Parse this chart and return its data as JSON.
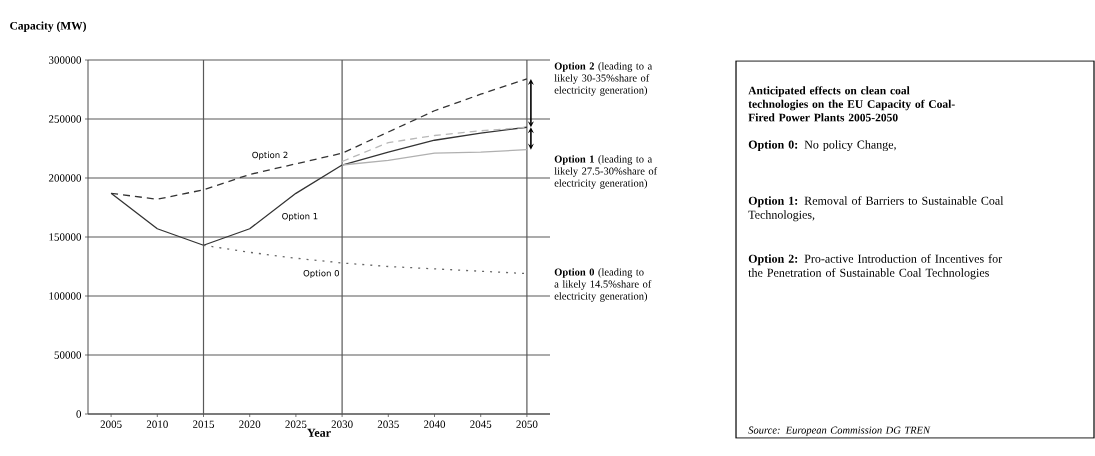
{
  "chart_data": {
    "type": "line",
    "title": "Anticipated effects on clean coal technologies on the EU Capacity of Coal-Fired Power Plants 2005-2050",
    "ylabel": "Capacity (MW)",
    "xlabel": "Year",
    "x": [
      2005,
      2010,
      2015,
      2020,
      2025,
      2030,
      2035,
      2040,
      2045,
      2050
    ],
    "series": [
      {
        "name": "Option 2",
        "color": "#333333",
        "line_style": "dashed",
        "values": [
          187000,
          182000,
          190000,
          203000,
          212000,
          221000,
          239000,
          257000,
          271000,
          284000
        ]
      },
      {
        "name": "Option 1",
        "color": "#333333",
        "line_style": "solid",
        "values": [
          187000,
          157000,
          143000,
          157000,
          187000,
          211000,
          222000,
          232000,
          238000,
          243000
        ]
      },
      {
        "name": "Option 0",
        "color": "#666666",
        "line_style": "dotted",
        "values": [
          null,
          null,
          143000,
          137000,
          132000,
          128000,
          125000,
          123000,
          121000,
          119000
        ]
      },
      {
        "color": "#b0b0b0",
        "line_style": "solid",
        "values": [
          null,
          null,
          null,
          null,
          null,
          211000,
          215000,
          221000,
          222000,
          224000
        ]
      },
      {
        "color": "#b8b8b8",
        "line_style": "dashed",
        "values": [
          null,
          null,
          null,
          null,
          null,
          214000,
          230000,
          236000,
          240000,
          243000
        ]
      }
    ],
    "xlim": [
      2002.5,
      2052.5
    ],
    "ylim": [
      0,
      300000
    ],
    "xticks": [
      2005,
      2010,
      2015,
      2020,
      2025,
      2030,
      2035,
      2040,
      2045,
      2050
    ],
    "yticks": [
      0,
      50000,
      100000,
      150000,
      200000,
      250000,
      300000
    ],
    "grid": "y",
    "ref_lines": [
      {
        "axis": "x",
        "value": 2015
      },
      {
        "axis": "x",
        "value": 2030
      },
      {
        "axis": "x",
        "value": 2050
      }
    ],
    "annotations": [
      "**Option 2** (leading to a likely 30-35%share of electricity generation)",
      "**Option 1** (leading to a likely 27.5-30%share of electricity generation)",
      "**Option 0** (leading to a likely 14.5%share of electricity generation)",
      "**Option 0:** No policy Change,",
      "**Option 1:** Removal of Barriers to Sustainable Coal Technologies,",
      "**Option 2:** Pro-active Introduction of Incentives for the Penetration of Sustainable Coal Technologies",
      "Source: European Commission DG TREN"
    ]
  }
}
